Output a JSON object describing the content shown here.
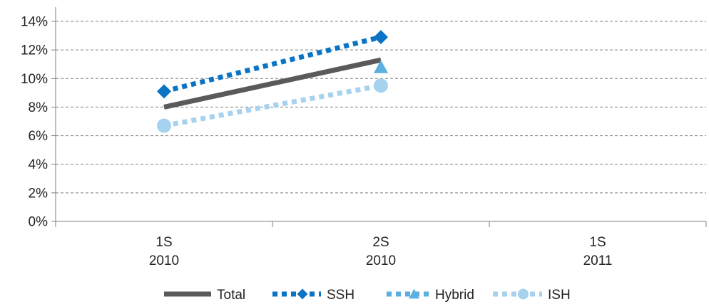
{
  "chart_data": {
    "type": "line",
    "categories": [
      [
        "1S",
        "2010"
      ],
      [
        "2S",
        "2010"
      ],
      [
        "1S",
        "2011"
      ]
    ],
    "ylim": [
      0,
      0.14
    ],
    "yticks": [
      0,
      0.02,
      0.04,
      0.06,
      0.08,
      0.1,
      0.12,
      0.14
    ],
    "ytick_labels": [
      "0%",
      "2%",
      "4%",
      "6%",
      "8%",
      "10%",
      "12%",
      "14%"
    ],
    "grid": true,
    "legend_position": "bottom",
    "series": [
      {
        "name": "Total",
        "values": [
          0.08,
          0.113,
          null
        ],
        "color": "#5a5a5a",
        "style": "solid",
        "marker": "none"
      },
      {
        "name": "SSH",
        "values": [
          0.091,
          0.129,
          null
        ],
        "color": "#0a74c4",
        "style": "dotted",
        "marker": "diamond"
      },
      {
        "name": "Hybrid",
        "values": [
          null,
          0.108,
          null
        ],
        "color": "#5ab0e0",
        "style": "dotted",
        "marker": "triangle"
      },
      {
        "name": "ISH",
        "values": [
          0.067,
          0.095,
          null
        ],
        "color": "#a6d1ef",
        "style": "dotted",
        "marker": "circle"
      }
    ]
  }
}
